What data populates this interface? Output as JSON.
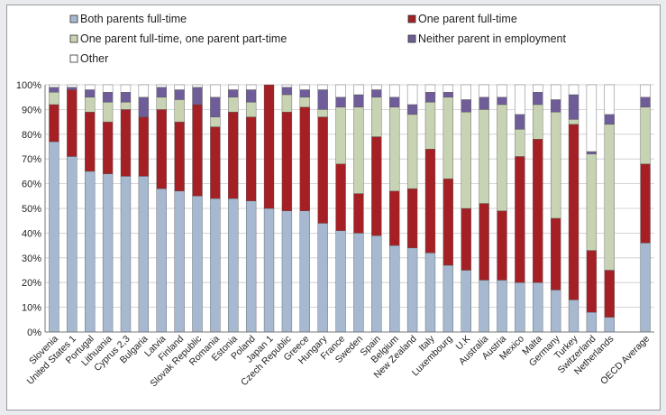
{
  "chart_data": {
    "type": "bar",
    "stacked": true,
    "title": "",
    "xlabel": "",
    "ylabel": "",
    "ylim": [
      0,
      100
    ],
    "yticks": [
      "0%",
      "10%",
      "20%",
      "30%",
      "40%",
      "50%",
      "60%",
      "70%",
      "80%",
      "90%",
      "100%"
    ],
    "grid": true,
    "legend_position": "top",
    "categories": [
      "Slovenia",
      "United States 1",
      "Portugal",
      "Lithuania",
      "Cyprus 2,3",
      "Bulgaria",
      "Latvia",
      "Finland",
      "Slovak Republic",
      "Romania",
      "Estonia",
      "Poland",
      "Japan 1",
      "Czech Republic",
      "Greece",
      "Hungary",
      "France",
      "Sweden",
      "Spain",
      "Belgium",
      "New Zealand",
      "Italy",
      "Luxembourg",
      "U.K",
      "Australia",
      "Austria",
      "Mexico",
      "Malta",
      "Germany",
      "Turkey",
      "Switzerland",
      "Netherlands",
      "OECD Average"
    ],
    "series": [
      {
        "name": "Both parents full-time",
        "color": "#a7b9d1",
        "values": [
          77,
          71,
          65,
          64,
          63,
          63,
          58,
          57,
          55,
          54,
          54,
          53,
          50,
          49,
          49,
          44,
          41,
          40,
          39,
          35,
          34,
          32,
          27,
          25,
          21,
          21,
          20,
          20,
          17,
          13,
          8,
          6,
          36
        ]
      },
      {
        "name": "One parent full-time",
        "color": "#a42024",
        "values": [
          15,
          27,
          24,
          21,
          27,
          24,
          32,
          28,
          37,
          29,
          35,
          34,
          50,
          40,
          42,
          43,
          27,
          16,
          40,
          22,
          24,
          42,
          35,
          25,
          31,
          28,
          51,
          58,
          29,
          71,
          25,
          19,
          32
        ]
      },
      {
        "name": "One parent full-time, one parent part-time",
        "color": "#c8d3b4",
        "values": [
          5,
          0,
          6,
          8,
          3,
          0,
          5,
          9,
          0,
          4,
          6,
          6,
          0,
          7,
          4,
          3,
          23,
          35,
          16,
          34,
          30,
          19,
          33,
          39,
          38,
          43,
          11,
          14,
          43,
          2,
          39,
          59,
          23
        ]
      },
      {
        "name": "Neither parent in employment",
        "color": "#6e5d98",
        "values": [
          2,
          1,
          3,
          4,
          4,
          8,
          4,
          4,
          7,
          8,
          3,
          5,
          0,
          3,
          3,
          8,
          4,
          5,
          3,
          4,
          4,
          4,
          2,
          5,
          5,
          3,
          6,
          5,
          5,
          10,
          1,
          4,
          4
        ]
      },
      {
        "name": "Other",
        "color": "#ffffff",
        "values": [
          1,
          1,
          2,
          3,
          3,
          5,
          1,
          2,
          1,
          5,
          2,
          2,
          0,
          1,
          2,
          2,
          5,
          4,
          2,
          5,
          8,
          3,
          3,
          6,
          5,
          5,
          12,
          3,
          6,
          4,
          27,
          12,
          5
        ]
      }
    ]
  }
}
